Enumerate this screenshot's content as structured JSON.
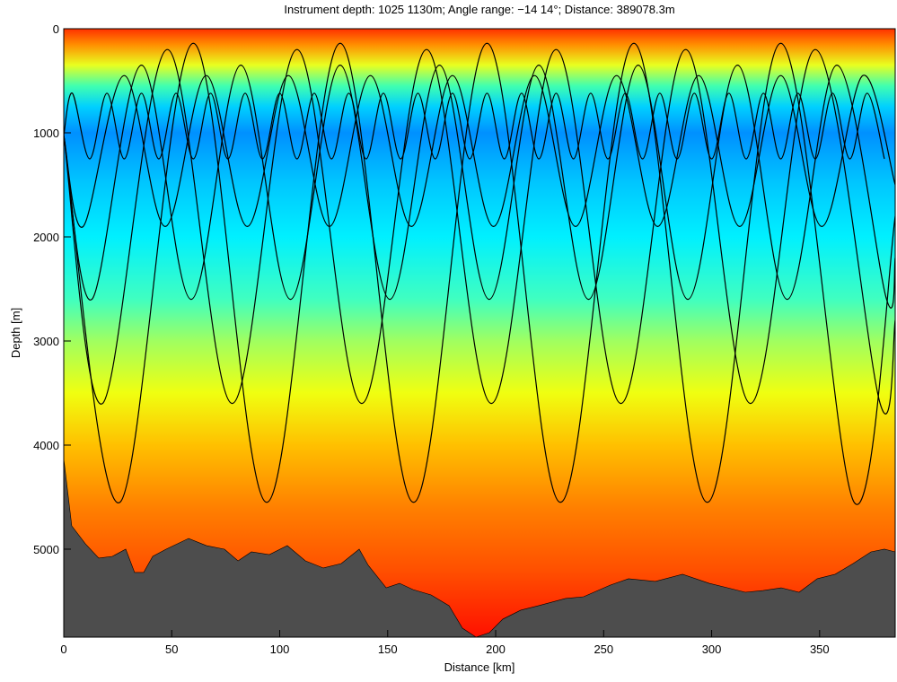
{
  "chart_data": {
    "type": "ray-trace",
    "title": "Instrument depth: 1025  1130m; Angle range: −14  14°; Distance: 389078.3m",
    "x_label": "Distance [km]",
    "y_label": "Depth [m]",
    "xlim": [
      0,
      385
    ],
    "ylim": [
      0,
      5845
    ],
    "y_reversed": true,
    "xticks": [
      0,
      50,
      100,
      150,
      200,
      250,
      300,
      350
    ],
    "yticks": [
      0,
      1000,
      2000,
      3000,
      4000,
      5000
    ],
    "background": {
      "depths": [
        0,
        150,
        350,
        550,
        750,
        1000,
        1500,
        2000,
        2600,
        3000,
        3500,
        4000,
        4600,
        5200,
        5845
      ],
      "colors": [
        "#ff3000",
        "#ff8c00",
        "#e8ff20",
        "#40ffb0",
        "#00d0ff",
        "#0090ff",
        "#00c8ff",
        "#00f0ff",
        "#40ffc0",
        "#a0ff60",
        "#f0ff10",
        "#ffc000",
        "#ff8000",
        "#ff5000",
        "#ff1000"
      ]
    },
    "seabed": {
      "color": "#4d4d4d",
      "x": [
        0,
        3.7,
        10,
        16.2,
        22.5,
        28.7,
        32.8,
        37,
        41.2,
        47.4,
        57.8,
        66.1,
        74.4,
        80.7,
        86.9,
        95.2,
        103.5,
        111.9,
        120.2,
        128.5,
        136.8,
        141,
        149.3,
        155.5,
        161.7,
        170.1,
        178.4,
        184.6,
        190.9,
        197.1,
        203.3,
        211.6,
        219.9,
        232.3,
        240.7,
        253.1,
        261.5,
        273.9,
        286.5,
        298.9,
        307.3,
        315.6,
        323.9,
        332.2,
        340.5,
        348.9,
        357.2,
        365.5,
        373.8,
        380,
        385
      ],
      "values": [
        4129,
        4776,
        4948,
        5086,
        5069,
        5000,
        5224,
        5224,
        5069,
        5000,
        4897,
        4966,
        5000,
        5112,
        5026,
        5052,
        4966,
        5112,
        5181,
        5138,
        5000,
        5155,
        5371,
        5328,
        5388,
        5440,
        5543,
        5759,
        5845,
        5802,
        5672,
        5586,
        5543,
        5474,
        5457,
        5345,
        5284,
        5310,
        5241,
        5328,
        5371,
        5414,
        5397,
        5371,
        5414,
        5284,
        5241,
        5138,
        5026,
        5000,
        5026
      ]
    },
    "ray_color": "#000000",
    "rays": [
      {
        "x": [
          0,
          26,
          60,
          94,
          128,
          162,
          196,
          230,
          264,
          298,
          332,
          366,
          385
        ],
        "values": [
          1025,
          4550,
          140,
          4550,
          140,
          4550,
          140,
          4550,
          140,
          4550,
          140,
          4550,
          1800
        ]
      },
      {
        "x": [
          0,
          4,
          12,
          20,
          28,
          36,
          44,
          52,
          60,
          68,
          76,
          84,
          92,
          100,
          108,
          116,
          124,
          132,
          140,
          148,
          156,
          164,
          172,
          180,
          188,
          196,
          204,
          212,
          220,
          228,
          236,
          244,
          252,
          260,
          268,
          276,
          284,
          292,
          300,
          308,
          316,
          324,
          332,
          340,
          348,
          356,
          364,
          372,
          380
        ],
        "values": [
          1025,
          620,
          1250,
          620,
          1250,
          620,
          1250,
          620,
          1250,
          620,
          1250,
          620,
          1250,
          620,
          1250,
          620,
          1250,
          620,
          1250,
          620,
          1250,
          620,
          1250,
          620,
          1250,
          620,
          1250,
          620,
          1250,
          620,
          1250,
          620,
          1250,
          620,
          1250,
          620,
          1250,
          620,
          1250,
          620,
          1250,
          620,
          1250,
          620,
          1250,
          620,
          1250,
          620,
          1250
        ]
      },
      {
        "x": [
          0,
          18,
          48,
          78,
          108,
          138,
          168,
          198,
          228,
          258,
          288,
          318,
          348,
          378,
          385
        ],
        "values": [
          1025,
          3600,
          200,
          3600,
          200,
          3600,
          200,
          3600,
          200,
          3600,
          200,
          3600,
          200,
          3600,
          2800
        ]
      },
      {
        "x": [
          0,
          13,
          36,
          59,
          82,
          105,
          128,
          151,
          174,
          197,
          220,
          243,
          266,
          289,
          312,
          335,
          358,
          381,
          385
        ],
        "values": [
          1025,
          2600,
          350,
          2600,
          350,
          2600,
          350,
          2600,
          350,
          2600,
          350,
          2600,
          350,
          2600,
          350,
          2600,
          350,
          2600,
          2200
        ]
      },
      {
        "x": [
          0,
          9,
          28,
          47,
          66,
          85,
          104,
          123,
          142,
          161,
          180,
          199,
          218,
          237,
          256,
          275,
          294,
          313,
          332,
          351,
          370,
          385
        ],
        "values": [
          1025,
          1900,
          450,
          1900,
          450,
          1900,
          450,
          1900,
          450,
          1900,
          450,
          1900,
          450,
          1900,
          450,
          1900,
          450,
          1900,
          450,
          1900,
          450,
          1500
        ]
      }
    ]
  }
}
